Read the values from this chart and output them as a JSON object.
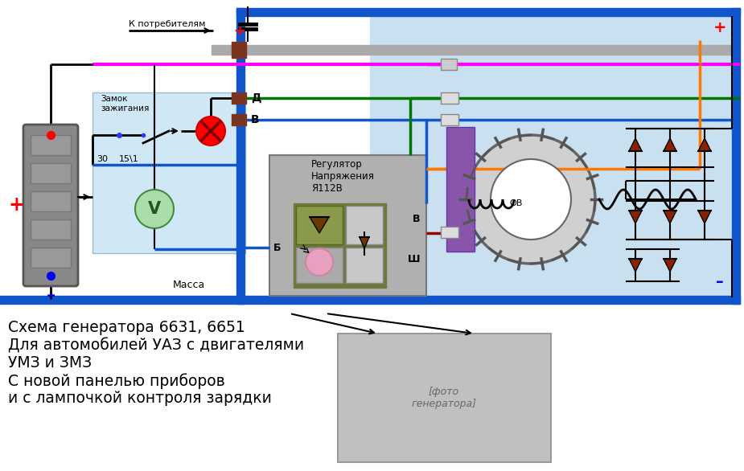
{
  "bg_color": "#ffffff",
  "diagram_bg": "#c8e0f0",
  "panel_bg": "#d0e8f5",
  "blue": "#1155cc",
  "green": "#007700",
  "pink": "#ff00ff",
  "orange": "#ff7700",
  "red": "#ff0000",
  "dark_red": "#990000",
  "gray_bus": "#888888",
  "dark_brown": "#7a3520",
  "purple": "#8855aa",
  "olive": "#6b7a3a",
  "olive_light": "#8a9a4a",
  "lt_gray": "#cccccc",
  "batt_gray": "#888888",
  "wire_black": "#000000",
  "title_lines": [
    "Схема генератора 6631, 6651",
    "Для автомобилей УАЗ с двигателями",
    "УМЗ и ЗМЗ",
    "С новой панелью приборов",
    "и с лампочкой контроля зарядки"
  ],
  "title_fontsize": 13.5
}
